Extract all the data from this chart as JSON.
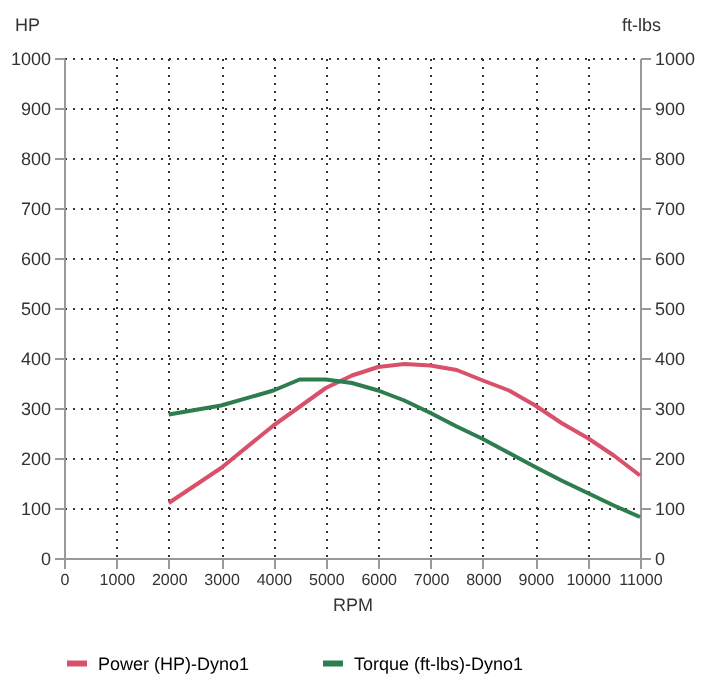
{
  "chart_data": {
    "type": "line",
    "xlabel": "RPM",
    "ylabel": "HP",
    "y2label": "ft-lbs",
    "xlim": [
      0,
      11000
    ],
    "xticks": [
      0,
      1000,
      2000,
      3000,
      4000,
      5000,
      6000,
      7000,
      8000,
      9000,
      10000,
      11000
    ],
    "ylim": [
      0,
      1000
    ],
    "yticks": [
      0,
      100,
      200,
      300,
      400,
      500,
      600,
      700,
      800,
      900,
      1000
    ],
    "y2lim": [
      0,
      1000
    ],
    "y2ticks": [
      0,
      100,
      200,
      300,
      400,
      500,
      600,
      700,
      800,
      900,
      1000
    ],
    "grid": true,
    "legend": "bottom",
    "line_style": "solid",
    "marker": "none",
    "series": [
      {
        "name": "Power (HP)-Dyno1",
        "color": "#d9506a",
        "x": [
          2000,
          3000,
          4000,
          5000,
          5500,
          6000,
          6500,
          7000,
          7500,
          8000,
          8500,
          9000,
          9500,
          10000,
          10500,
          11000
        ],
        "values": [
          110,
          180,
          265,
          340,
          365,
          382,
          388,
          385,
          376,
          355,
          335,
          305,
          270,
          240,
          205,
          165
        ]
      },
      {
        "name": "Torque (ft-lbs)-Dyno1",
        "color": "#2e7d4f",
        "axis": "y2",
        "x": [
          2000,
          3000,
          4000,
          4500,
          5000,
          5500,
          6000,
          6500,
          7000,
          7500,
          8000,
          8500,
          9000,
          9500,
          10000,
          10500,
          11000
        ],
        "values": [
          287,
          305,
          335,
          357,
          357,
          350,
          335,
          315,
          290,
          263,
          238,
          210,
          182,
          155,
          130,
          105,
          82
        ]
      }
    ]
  }
}
